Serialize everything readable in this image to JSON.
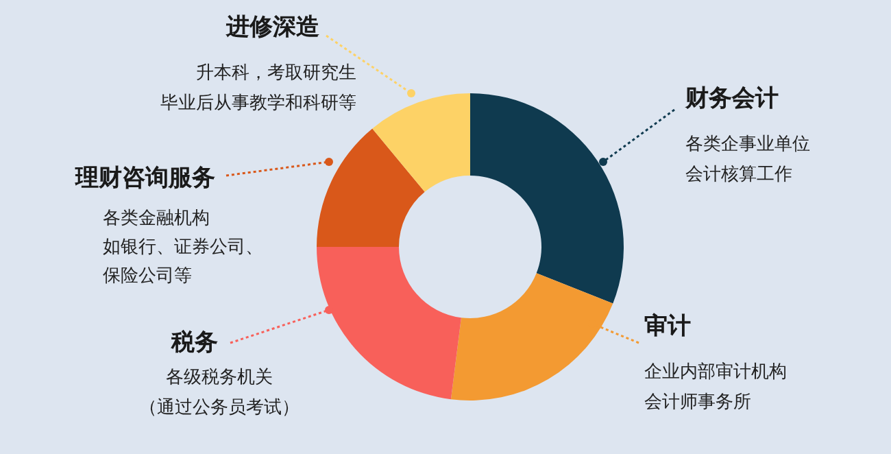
{
  "chart_data": {
    "type": "donut",
    "categories": [
      "财务会计",
      "审计",
      "税务",
      "理财咨询服务",
      "进修深造"
    ],
    "values": [
      31,
      21,
      23,
      14,
      11
    ],
    "colors": [
      "#0f3a4f",
      "#f39a32",
      "#f8605a",
      "#d9581a",
      "#fdd266"
    ],
    "annotations": [
      "各类企事业单位",
      "会计核算工作",
      "企业内部审计机构",
      "会计师事务所",
      "各级税务机关",
      "（通过公务员考试）",
      "各类金融机构",
      "如银行、证券公司、",
      "保险公司等",
      "升本科，考取研究生",
      "毕业后从事教学和科研等"
    ]
  }
}
